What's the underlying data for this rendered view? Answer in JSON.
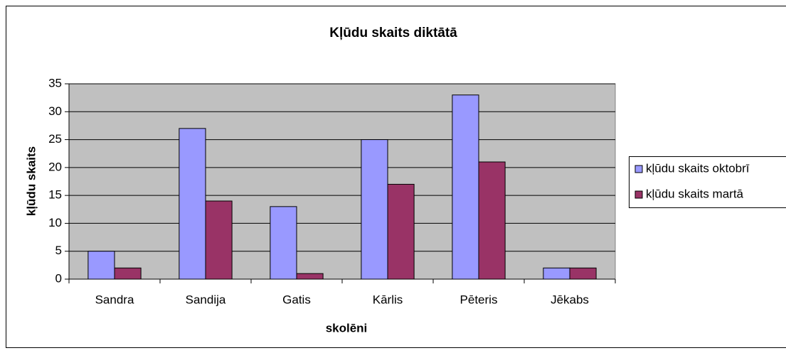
{
  "chart_data": {
    "type": "bar",
    "title": "Kļūdu skaits diktātā",
    "x_label": "skolēni",
    "y_label": "kļūdu skaits",
    "categories": [
      "Sandra",
      "Sandija",
      "Gatis",
      "Kārlis",
      "Pēteris",
      "Jēkabs"
    ],
    "series": [
      {
        "name": "kļūdu skaits oktobrī",
        "color": "#9999ff",
        "values": [
          5,
          27,
          13,
          25,
          33,
          2
        ]
      },
      {
        "name": "kļūdu skaits martā",
        "color": "#993366",
        "values": [
          2,
          14,
          1,
          17,
          21,
          2
        ]
      }
    ],
    "ylim": [
      0,
      35
    ],
    "yticks": [
      0,
      5,
      10,
      15,
      20,
      25,
      30,
      35
    ],
    "grid": true,
    "plot_background": "#c0c0c0",
    "legend": "right"
  }
}
